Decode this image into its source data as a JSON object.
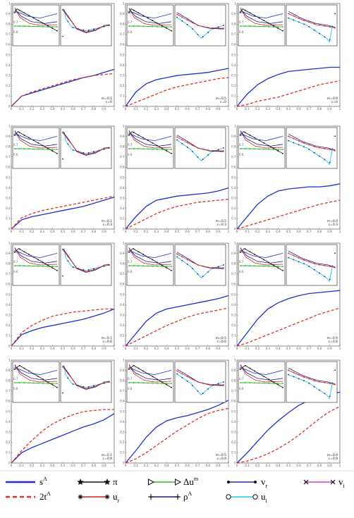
{
  "figure": {
    "xticks": [
      "0",
      "0.1",
      "0.2",
      "0.3",
      "0.4",
      "0.5",
      "0.6",
      "0.7",
      "0.8",
      "0.9",
      "1"
    ],
    "yticks": [
      "0",
      "0.1",
      "0.2",
      "0.3",
      "0.4",
      "0.5",
      "0.6",
      "0.7",
      "0.8",
      "0.9",
      "1"
    ],
    "inset_yticks": [
      "0.8",
      "0.7",
      "0.6"
    ]
  },
  "legend": {
    "items": [
      {
        "name": "sA-legend",
        "base": "s",
        "sup": "A",
        "sub": "",
        "color": "#1f2fd0",
        "style": "solid"
      },
      {
        "name": "2tA-legend",
        "base": "2t",
        "sup": "A",
        "sub": "",
        "color": "#e0302a",
        "style": "dashed"
      },
      {
        "name": "pi-legend",
        "base": "π",
        "sup": "",
        "sub": "",
        "color": "#111111",
        "marker": "star"
      },
      {
        "name": "ur-legend",
        "base": "u",
        "sup": "",
        "sub": "r",
        "color": "#d02020",
        "marker": "asterisk"
      },
      {
        "name": "delta-um-legend",
        "base": "Δu",
        "sup": "m",
        "sub": "",
        "color": "#22bb22",
        "marker": "triangle"
      },
      {
        "name": "rhoA-legend",
        "base": "ρ",
        "sup": "A",
        "sub": "",
        "color": "#1a1a8a",
        "marker": "plus"
      },
      {
        "name": "vr-legend",
        "base": "v",
        "sup": "",
        "sub": "r",
        "color": "#1f2fd0",
        "marker": "dot"
      },
      {
        "name": "ui-legend",
        "base": "u",
        "sup": "",
        "sub": "i",
        "color": "#22c8e0",
        "marker": "circle"
      },
      {
        "name": "vi-legend",
        "base": "v",
        "sup": "",
        "sub": "i",
        "color": "#d040c0",
        "marker": "cross"
      }
    ]
  },
  "chart_data": [
    {
      "type": "line",
      "row": 0,
      "col": 0,
      "params": [
        "m=0.1",
        "c=0"
      ],
      "series": [
        {
          "values": [
            0,
            0.1,
            0.13,
            0.16,
            0.19,
            0.22,
            0.25,
            0.28,
            0.3,
            0.33,
            0.36
          ]
        },
        {
          "values": [
            0,
            0.1,
            0.14,
            0.17,
            0.2,
            0.23,
            0.26,
            0.28,
            0.3,
            0.31,
            0.32
          ]
        }
      ]
    },
    {
      "type": "line",
      "row": 0,
      "col": 1,
      "params": [
        "m=0.5",
        "c=0"
      ],
      "series": [
        {
          "values": [
            0,
            0.14,
            0.22,
            0.26,
            0.28,
            0.3,
            0.31,
            0.32,
            0.33,
            0.35,
            0.37
          ]
        },
        {
          "values": [
            0,
            0.04,
            0.08,
            0.12,
            0.16,
            0.19,
            0.21,
            0.23,
            0.25,
            0.27,
            0.28
          ]
        }
      ]
    },
    {
      "type": "line",
      "row": 0,
      "col": 2,
      "params": [
        "m=0.9",
        "c=0"
      ],
      "series": [
        {
          "values": [
            0,
            0.12,
            0.21,
            0.27,
            0.31,
            0.34,
            0.35,
            0.36,
            0.37,
            0.38,
            0.38
          ]
        },
        {
          "values": [
            0,
            0.02,
            0.05,
            0.07,
            0.09,
            0.12,
            0.15,
            0.18,
            0.21,
            0.23,
            0.25
          ]
        }
      ]
    },
    {
      "type": "line",
      "row": 1,
      "col": 0,
      "params": [
        "m=0.1",
        "c=0.3"
      ],
      "series": [
        {
          "values": [
            0,
            0.09,
            0.12,
            0.14,
            0.16,
            0.18,
            0.2,
            0.22,
            0.25,
            0.28,
            0.31
          ]
        },
        {
          "values": [
            0,
            0.11,
            0.15,
            0.18,
            0.2,
            0.22,
            0.24,
            0.26,
            0.28,
            0.3,
            0.32
          ]
        }
      ]
    },
    {
      "type": "line",
      "row": 1,
      "col": 1,
      "params": [
        "m=0.5",
        "c=0.3"
      ],
      "series": [
        {
          "values": [
            0,
            0.12,
            0.22,
            0.28,
            0.3,
            0.32,
            0.33,
            0.34,
            0.35,
            0.37,
            0.4
          ]
        },
        {
          "values": [
            0,
            0.05,
            0.1,
            0.15,
            0.19,
            0.22,
            0.24,
            0.26,
            0.27,
            0.28,
            0.29
          ]
        }
      ]
    },
    {
      "type": "line",
      "row": 1,
      "col": 2,
      "params": [
        "m=0.9",
        "c=0.3"
      ],
      "series": [
        {
          "values": [
            0,
            0.12,
            0.24,
            0.32,
            0.37,
            0.39,
            0.4,
            0.41,
            0.41,
            0.42,
            0.44
          ]
        },
        {
          "values": [
            0,
            0.03,
            0.06,
            0.09,
            0.12,
            0.15,
            0.18,
            0.21,
            0.24,
            0.26,
            0.28
          ]
        }
      ]
    },
    {
      "type": "line",
      "row": 2,
      "col": 0,
      "params": [
        "m=0.1",
        "c=0.6"
      ],
      "series": [
        {
          "values": [
            0,
            0.11,
            0.15,
            0.18,
            0.2,
            0.22,
            0.24,
            0.26,
            0.29,
            0.32,
            0.36
          ]
        },
        {
          "values": [
            0,
            0.13,
            0.2,
            0.25,
            0.29,
            0.31,
            0.33,
            0.34,
            0.35,
            0.36,
            0.36
          ]
        }
      ]
    },
    {
      "type": "line",
      "row": 2,
      "col": 1,
      "params": [
        "m=0.5",
        "c=0.6"
      ],
      "series": [
        {
          "values": [
            0,
            0.12,
            0.24,
            0.32,
            0.36,
            0.38,
            0.4,
            0.42,
            0.44,
            0.46,
            0.49
          ]
        },
        {
          "values": [
            0,
            0.05,
            0.1,
            0.15,
            0.2,
            0.24,
            0.28,
            0.31,
            0.33,
            0.35,
            0.37
          ]
        }
      ]
    },
    {
      "type": "line",
      "row": 2,
      "col": 2,
      "params": [
        "m=0.9",
        "c=0.6"
      ],
      "series": [
        {
          "values": [
            0,
            0.13,
            0.26,
            0.36,
            0.42,
            0.46,
            0.49,
            0.51,
            0.52,
            0.53,
            0.54
          ]
        },
        {
          "values": [
            0,
            0.03,
            0.07,
            0.11,
            0.15,
            0.19,
            0.23,
            0.27,
            0.31,
            0.34,
            0.37
          ]
        }
      ]
    },
    {
      "type": "line",
      "row": 3,
      "col": 0,
      "params": [
        "m=0.1",
        "c=0.9"
      ],
      "series": [
        {
          "values": [
            0,
            0.1,
            0.15,
            0.19,
            0.23,
            0.27,
            0.31,
            0.35,
            0.38,
            0.42,
            0.48
          ]
        },
        {
          "values": [
            0,
            0.12,
            0.22,
            0.31,
            0.38,
            0.43,
            0.47,
            0.5,
            0.51,
            0.52,
            0.52
          ]
        }
      ]
    },
    {
      "type": "line",
      "row": 3,
      "col": 1,
      "params": [
        "m=0.5",
        "c=0.9"
      ],
      "series": [
        {
          "values": [
            0,
            0.12,
            0.25,
            0.35,
            0.41,
            0.44,
            0.46,
            0.49,
            0.52,
            0.56,
            0.61
          ]
        },
        {
          "values": [
            0,
            0.04,
            0.1,
            0.17,
            0.24,
            0.31,
            0.37,
            0.43,
            0.48,
            0.51,
            0.53
          ]
        }
      ]
    },
    {
      "type": "line",
      "row": 3,
      "col": 2,
      "params": [
        "m=0.9",
        "c=0.9"
      ],
      "series": [
        {
          "values": [
            0,
            0.1,
            0.21,
            0.32,
            0.41,
            0.49,
            0.56,
            0.61,
            0.64,
            0.66,
            0.69
          ]
        },
        {
          "values": [
            0,
            0.02,
            0.05,
            0.09,
            0.14,
            0.2,
            0.27,
            0.35,
            0.43,
            0.5,
            0.55
          ]
        }
      ]
    }
  ]
}
